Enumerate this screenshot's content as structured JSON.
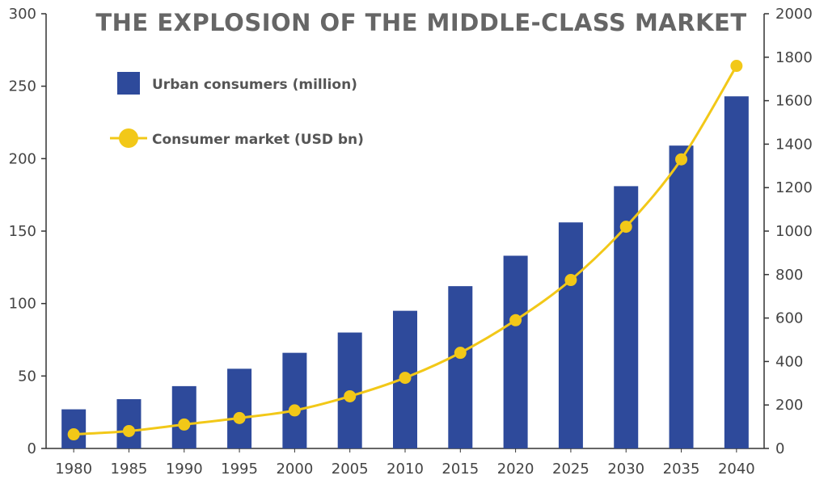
{
  "chart_data": {
    "type": "bar",
    "title": "THE EXPLOSION OF THE MIDDLE-CLASS MARKET",
    "categories": [
      "1980",
      "1985",
      "1990",
      "1995",
      "2000",
      "2005",
      "2010",
      "2015",
      "2020",
      "2025",
      "2030",
      "2035",
      "2040"
    ],
    "series": [
      {
        "name": "Urban consumers (million)",
        "type": "bar",
        "axis": "left",
        "color": "#2e4a9b",
        "values": [
          27,
          34,
          43,
          55,
          66,
          80,
          95,
          112,
          133,
          156,
          181,
          209,
          243
        ]
      },
      {
        "name": "Consumer market (USD bn)",
        "type": "line",
        "axis": "right",
        "color": "#f2c818",
        "values": [
          65,
          80,
          110,
          140,
          175,
          240,
          325,
          440,
          590,
          775,
          1020,
          1330,
          1760
        ]
      }
    ],
    "y_left": {
      "min": 0,
      "max": 300,
      "ticks": [
        0,
        50,
        100,
        150,
        200,
        250,
        300
      ]
    },
    "y_right": {
      "min": 0,
      "max": 2000,
      "ticks": [
        0,
        200,
        400,
        600,
        800,
        1000,
        1200,
        1400,
        1600,
        1800,
        2000
      ]
    },
    "legend_position": "top-left",
    "grid": false
  }
}
